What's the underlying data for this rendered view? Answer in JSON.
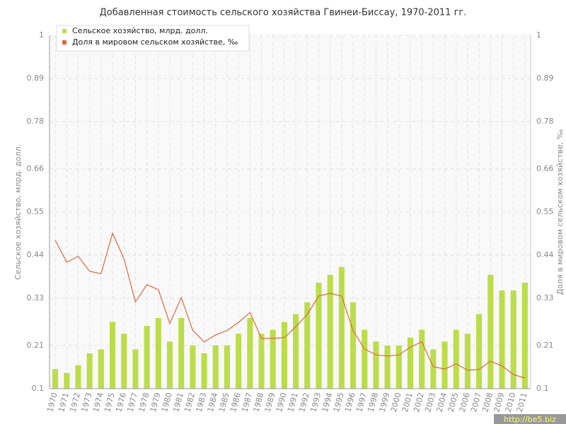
{
  "chart_data": {
    "type": "bar-line",
    "title": "Добавленная стоимость сельского хозяйства Гвинеи-Биссау, 1970-2011 гг.",
    "y_label": "Сельское хозяйство, млрд. долл.",
    "y2_label": "Доля в мировом сельском хозяйстве, ‰",
    "categories": [
      "1970",
      "1971",
      "1972",
      "1973",
      "1974",
      "1975",
      "1976",
      "1977",
      "1978",
      "1979",
      "1980",
      "1981",
      "1982",
      "1983",
      "1984",
      "1985",
      "1986",
      "1987",
      "1988",
      "1989",
      "1990",
      "1991",
      "1992",
      "1993",
      "1994",
      "1995",
      "1996",
      "1997",
      "1998",
      "1999",
      "2000",
      "2001",
      "2002",
      "2003",
      "2004",
      "2005",
      "2006",
      "2007",
      "2008",
      "2009",
      "2010",
      "2011"
    ],
    "series": [
      {
        "name": "Сельское хозяйство, млрд. долл.",
        "color": "#bcdd4a",
        "kind": "bar",
        "values": [
          0.15,
          0.14,
          0.16,
          0.19,
          0.2,
          0.27,
          0.24,
          0.2,
          0.26,
          0.28,
          0.22,
          0.28,
          0.21,
          0.19,
          0.21,
          0.21,
          0.24,
          0.28,
          0.24,
          0.25,
          0.27,
          0.29,
          0.32,
          0.37,
          0.39,
          0.41,
          0.32,
          0.25,
          0.22,
          0.21,
          0.21,
          0.23,
          0.25,
          0.2,
          0.22,
          0.25,
          0.24,
          0.29,
          0.39,
          0.35,
          0.35,
          0.37
        ]
      },
      {
        "name": "Доля в мировом сельском хозяйстве, ‰",
        "color": "#e0673a",
        "kind": "line",
        "axis": "y2",
        "values": [
          0.478,
          0.422,
          0.437,
          0.399,
          0.393,
          0.496,
          0.431,
          0.321,
          0.365,
          0.352,
          0.266,
          0.332,
          0.249,
          0.219,
          0.237,
          0.248,
          0.269,
          0.294,
          0.228,
          0.228,
          0.23,
          0.258,
          0.289,
          0.336,
          0.343,
          0.336,
          0.248,
          0.201,
          0.186,
          0.183,
          0.186,
          0.206,
          0.219,
          0.156,
          0.15,
          0.163,
          0.147,
          0.149,
          0.17,
          0.158,
          0.136,
          0.127
        ]
      }
    ],
    "ylim": [
      0.1,
      1
    ],
    "yticks": [
      0.1,
      0.21,
      0.33,
      0.44,
      0.55,
      0.66,
      0.78,
      0.89,
      1
    ],
    "y2lim": [
      0.1,
      1
    ],
    "y2ticks": [
      0.1,
      0.21,
      0.33,
      0.44,
      0.55,
      0.66,
      0.78,
      0.89,
      1
    ],
    "grid": true,
    "legend": "top-left",
    "watermark": "http://be5.biz"
  }
}
